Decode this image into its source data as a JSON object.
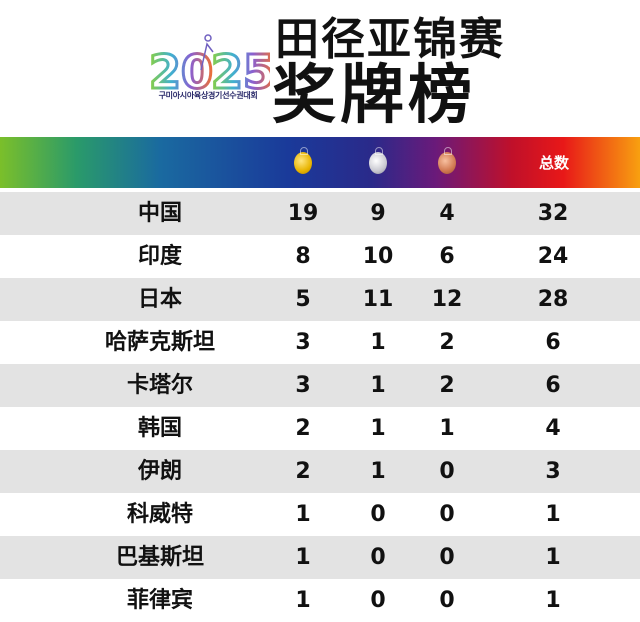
{
  "header": {
    "title_line1": "田径亚锦赛",
    "title_line2": "奖牌榜",
    "logo_text": "20 25",
    "logo_subtitle": "구미아시아육상경기선수권대회"
  },
  "table": {
    "columns": {
      "gold": "gold-medal-icon",
      "silver": "silver-medal-icon",
      "bronze": "bronze-medal-icon",
      "total": "总数"
    },
    "rows": [
      {
        "country": "中国",
        "gold": "19",
        "silver": "9",
        "bronze": "4",
        "total": "32"
      },
      {
        "country": "印度",
        "gold": "8",
        "silver": "10",
        "bronze": "6",
        "total": "24"
      },
      {
        "country": "日本",
        "gold": "5",
        "silver": "11",
        "bronze": "12",
        "total": "28"
      },
      {
        "country": "哈萨克斯坦",
        "gold": "3",
        "silver": "1",
        "bronze": "2",
        "total": "6"
      },
      {
        "country": "卡塔尔",
        "gold": "3",
        "silver": "1",
        "bronze": "2",
        "total": "6"
      },
      {
        "country": "韩国",
        "gold": "2",
        "silver": "1",
        "bronze": "1",
        "total": "4"
      },
      {
        "country": "伊朗",
        "gold": "2",
        "silver": "1",
        "bronze": "0",
        "total": "3"
      },
      {
        "country": "科威特",
        "gold": "1",
        "silver": "0",
        "bronze": "0",
        "total": "1"
      },
      {
        "country": "巴基斯坦",
        "gold": "1",
        "silver": "0",
        "bronze": "0",
        "total": "1"
      },
      {
        "country": "菲律宾",
        "gold": "1",
        "silver": "0",
        "bronze": "0",
        "total": "1"
      }
    ]
  },
  "colors": {
    "row_alt": "#e3e3e3",
    "gold": "#e8b400",
    "silver": "#c8c8d0",
    "bronze": "#d07850"
  }
}
